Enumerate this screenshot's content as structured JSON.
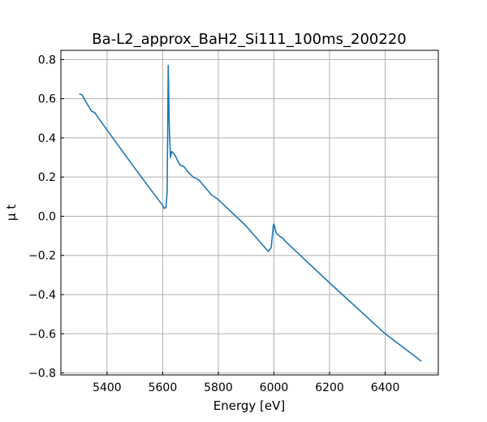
{
  "chart_data": {
    "type": "line",
    "title": "Ba-L2_approx_BaH2_Si111_100ms_200220",
    "xlabel": "Energy [eV]",
    "ylabel": "μ t",
    "xlim": [
      5234,
      6591
    ],
    "ylim": [
      -0.81,
      0.847
    ],
    "xticks": [
      5400,
      5600,
      5800,
      6000,
      6200,
      6400
    ],
    "yticks": [
      -0.8,
      -0.6,
      -0.4,
      -0.2,
      0.0,
      0.2,
      0.4,
      0.6,
      0.8
    ],
    "xtick_labels": [
      "5400",
      "5600",
      "5800",
      "6000",
      "6200",
      "6400"
    ],
    "ytick_labels": [
      "−0.8",
      "−0.6",
      "−0.4",
      "−0.2",
      "0.0",
      "0.2",
      "0.4",
      "0.6",
      "0.8"
    ],
    "grid": true,
    "series": [
      {
        "name": "mu t",
        "color": "#1f77b4",
        "x": [
          5300,
          5310,
          5330,
          5345,
          5355,
          5370,
          5400,
          5500,
          5600,
          5605,
          5612,
          5616,
          5620,
          5624,
          5628,
          5632,
          5637,
          5645,
          5655,
          5663,
          5675,
          5695,
          5710,
          5730,
          5775,
          5800,
          5900,
          5980,
          5990,
          5998,
          6000,
          6008,
          6023,
          6030,
          6043,
          6065,
          6095,
          6200,
          6300,
          6400,
          6530
        ],
        "y": [
          0.625,
          0.62,
          0.57,
          0.535,
          0.53,
          0.5,
          0.44,
          0.245,
          0.055,
          0.04,
          0.045,
          0.12,
          0.77,
          0.45,
          0.3,
          0.33,
          0.325,
          0.31,
          0.28,
          0.26,
          0.255,
          0.22,
          0.2,
          0.185,
          0.11,
          0.085,
          -0.05,
          -0.18,
          -0.16,
          -0.045,
          -0.04,
          -0.085,
          -0.105,
          -0.11,
          -0.13,
          -0.16,
          -0.2,
          -0.34,
          -0.47,
          -0.6,
          -0.74
        ]
      }
    ]
  }
}
